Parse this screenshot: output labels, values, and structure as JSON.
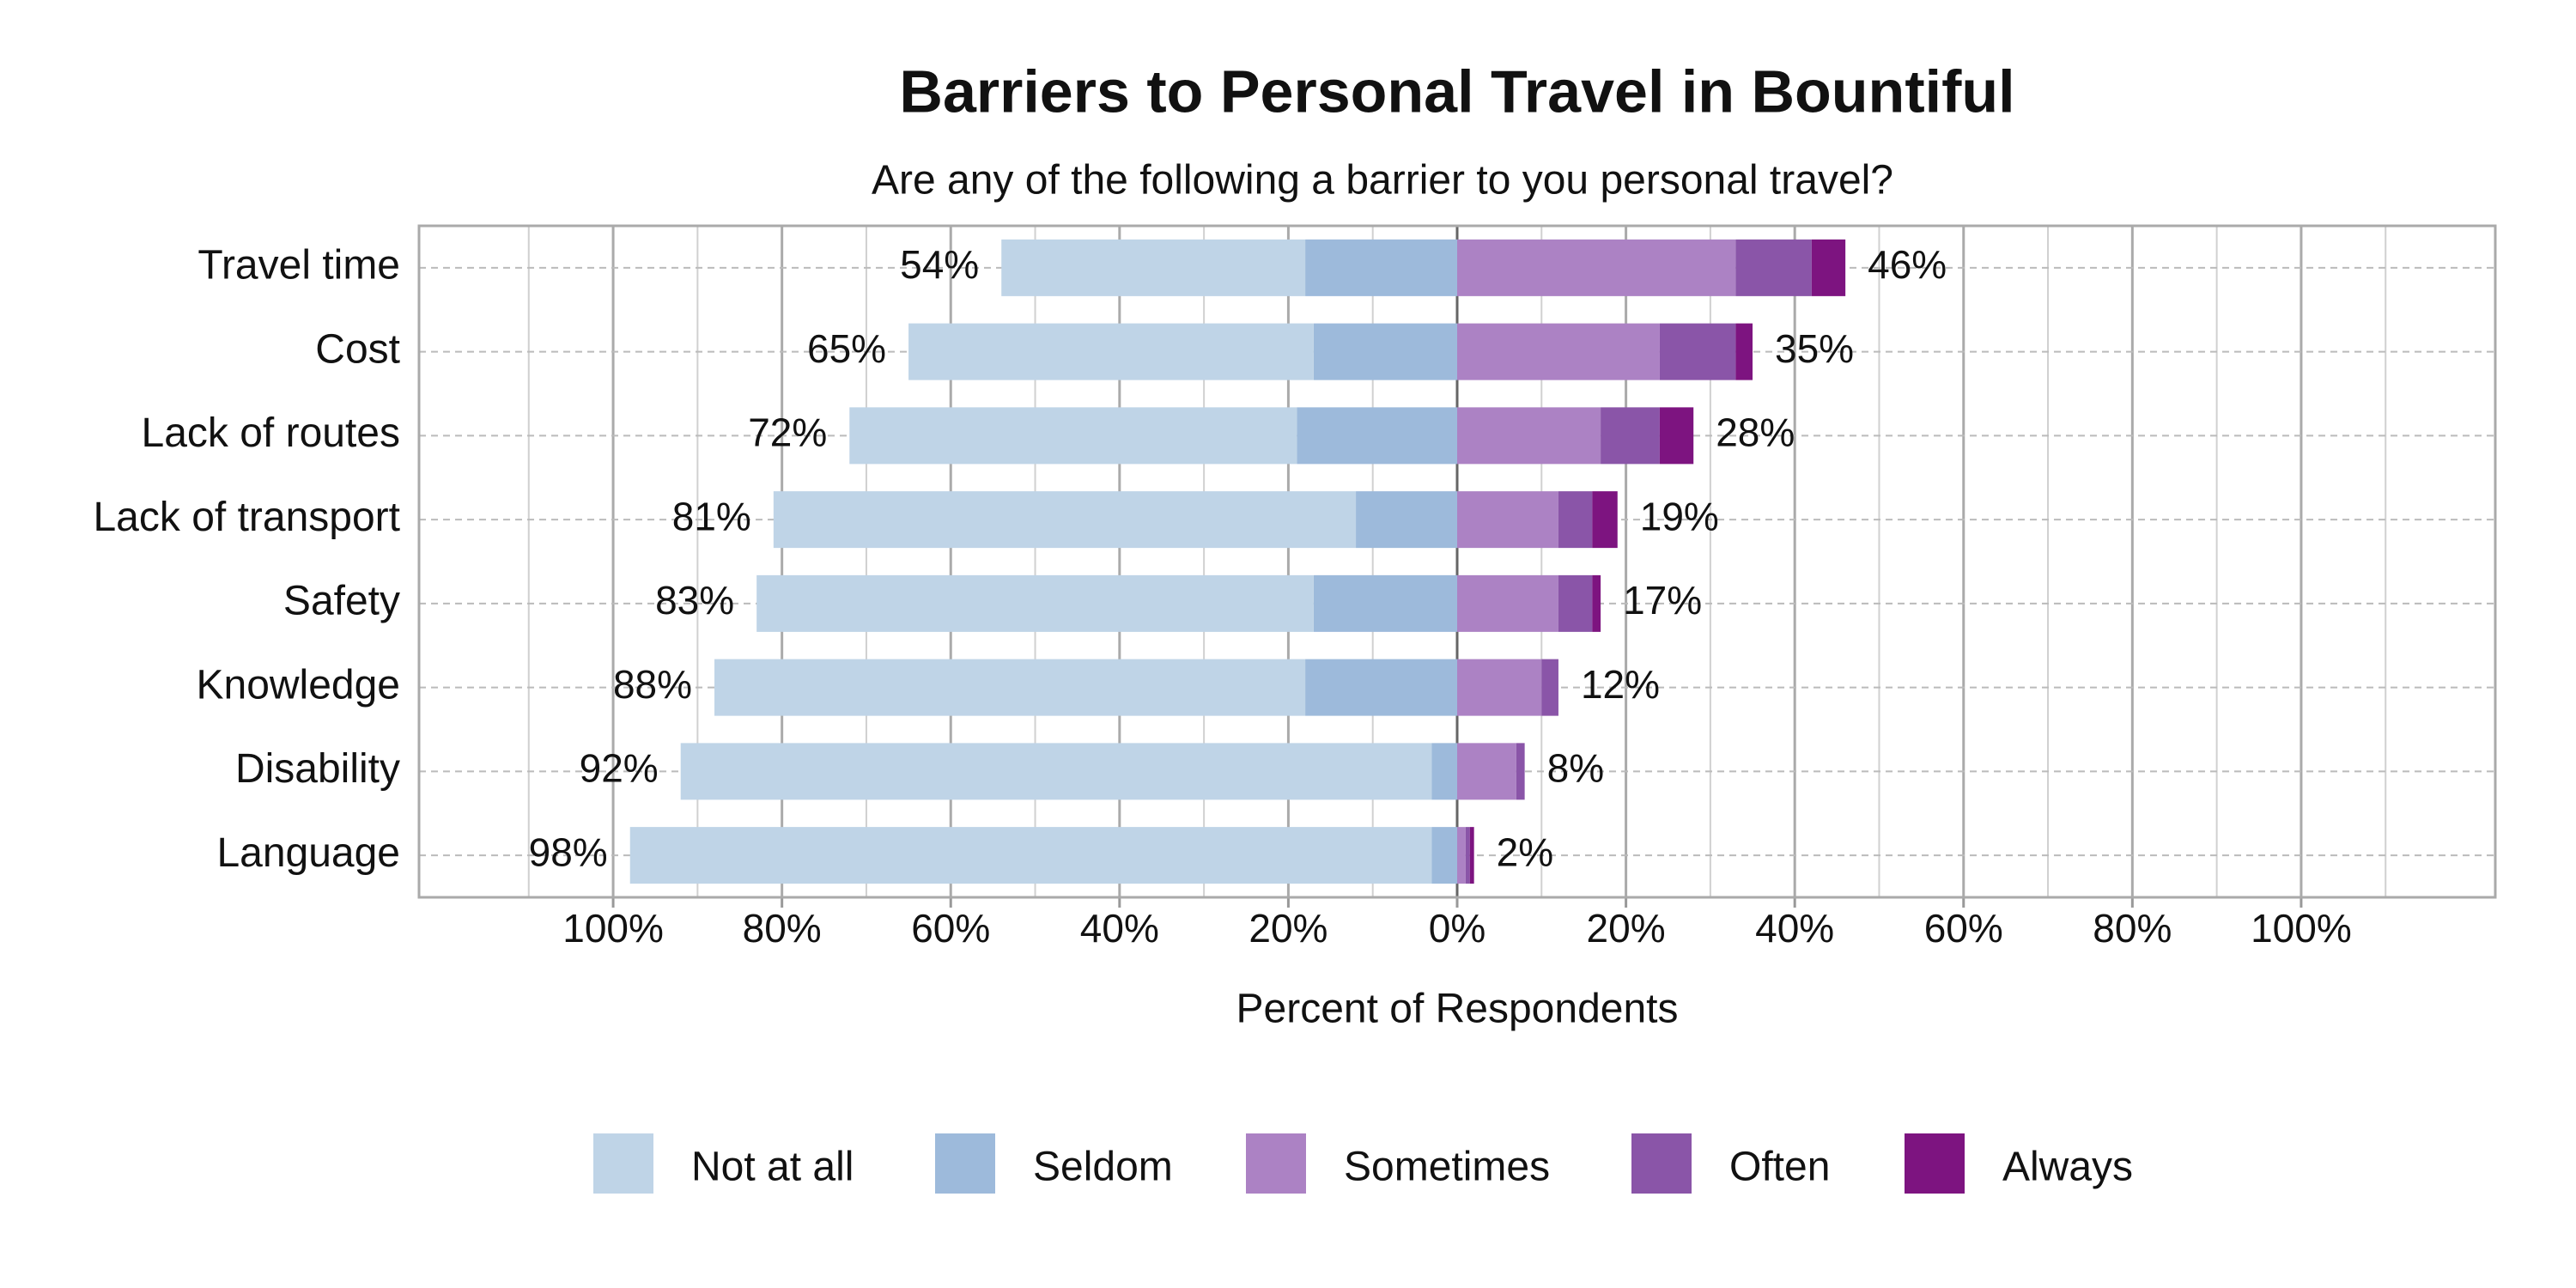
{
  "chart_data": {
    "type": "diverging_bar",
    "title": "Barriers to Personal Travel in Bountiful",
    "subtitle": "Are any of the following a barrier to you personal travel?",
    "x_label": "Percent of Respondents",
    "categories": [
      "Travel time",
      "Cost",
      "Lack of routes",
      "Lack of transport",
      "Safety",
      "Knowledge",
      "Disability",
      "Language"
    ],
    "series": [
      {
        "name": "Not at all",
        "color": "#bfd4e7",
        "side": "left",
        "values": [
          36,
          48,
          53,
          69,
          66,
          70,
          89,
          95
        ]
      },
      {
        "name": "Seldom",
        "color": "#9dbadb",
        "side": "left",
        "values": [
          18,
          17,
          19,
          12,
          17,
          18,
          3,
          3
        ]
      },
      {
        "name": "Sometimes",
        "color": "#ac82c4",
        "side": "right",
        "values": [
          33,
          24,
          17,
          12,
          12,
          10,
          7,
          1
        ]
      },
      {
        "name": "Often",
        "color": "#8a55a8",
        "side": "right",
        "values": [
          9,
          9,
          7,
          4,
          4,
          2,
          1,
          0.5
        ]
      },
      {
        "name": "Always",
        "color": "#7d1480",
        "side": "right",
        "values": [
          4,
          2,
          4,
          3,
          1,
          0,
          0,
          0.5
        ]
      }
    ],
    "left_totals": [
      54,
      65,
      72,
      81,
      83,
      88,
      92,
      98
    ],
    "left_total_labels": [
      "54%",
      "65%",
      "72%",
      "81%",
      "83%",
      "88%",
      "92%",
      "98%"
    ],
    "right_totals": [
      46,
      35,
      28,
      19,
      17,
      12,
      8,
      2
    ],
    "right_total_labels": [
      "46%",
      "35%",
      "28%",
      "19%",
      "17%",
      "12%",
      "8%",
      "2%"
    ],
    "xlim": [
      -123,
      123
    ],
    "xticks": [
      {
        "value": -100,
        "label": "100%"
      },
      {
        "value": -80,
        "label": "80%"
      },
      {
        "value": -60,
        "label": "60%"
      },
      {
        "value": -40,
        "label": "40%"
      },
      {
        "value": -20,
        "label": "20%"
      },
      {
        "value": 0,
        "label": "0%"
      },
      {
        "value": 20,
        "label": "20%"
      },
      {
        "value": 40,
        "label": "40%"
      },
      {
        "value": 60,
        "label": "60%"
      },
      {
        "value": 80,
        "label": "80%"
      },
      {
        "value": 100,
        "label": "100%"
      }
    ],
    "minor_xticks": [
      -110,
      -90,
      -70,
      -50,
      -30,
      -10,
      10,
      30,
      50,
      70,
      90,
      110
    ],
    "grid": true,
    "legend": "bottom"
  }
}
